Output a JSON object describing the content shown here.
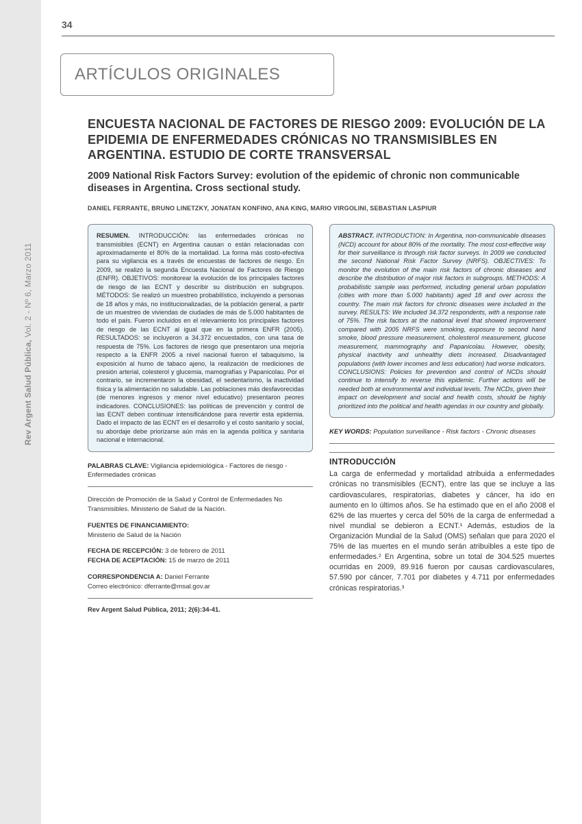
{
  "page_number": "34",
  "side_citation_bold": "Rev Argent Salud Pública,",
  "side_citation_rest": " Vol. 2 - Nº 6, Marzo 2011",
  "section_label": "ARTÍCULOS ORIGINALES",
  "title_es": "ENCUESTA NACIONAL DE FACTORES DE RIESGO 2009: EVOLUCIÓN DE LA EPIDEMIA DE ENFERMEDADES CRÓNICAS NO TRANSMISIBLES EN ARGENTINA. ESTUDIO DE CORTE TRANSVERSAL",
  "title_en": "2009 National Risk Factors Survey: evolution of the epidemic of chronic non communicable diseases in Argentina. Cross sectional study.",
  "authors": "Daniel Ferrante, Bruno Linetzky, Jonatan Konfino, Ana King, Mario Virgolini, Sebastian Laspiur",
  "resumen_lead": "RESUMEN.",
  "resumen_body": " INTRODUCCIÓN: las enfermedades crónicas no transmisibles (ECNT) en Argentina causan o están relacionadas con aproximadamente el 80% de la mortalidad. La forma más costo-efectiva para su vigilancia es a través de encuestas de factores de riesgo. En 2009, se realizó la segunda Encuesta Nacional de Factores de Riesgo (ENFR). OBJETIVOS: monitorear la evolución de los principales factores de riesgo de las ECNT y describir su distribución en subgrupos. MÉTODOS: Se realizó un muestreo probabilístico, incluyendo a personas de 18 años y más, no institucionalizadas, de la población general, a partir de un muestreo de viviendas de ciudades de más de 5.000 habitantes de todo el país. Fueron incluidos en el relevamiento los principales factores de riesgo de las ECNT al igual que en la primera ENFR (2005). RESULTADOS: se incluyeron a 34.372 encuestados, con una tasa de respuesta de 75%. Los factores de riesgo que presentaron una mejoría respecto a la ENFR 2005 a nivel nacional fueron el tabaquismo, la exposición al humo de tabaco ajeno, la realización de mediciones de presión arterial, colesterol y glucemia, mamografías y Papanicolau. Por el contrario, se incrementaron la obesidad, el sedentarismo, la inactividad física y la alimentación no saludable. Las poblaciones más desfavorecidas (de menores ingresos y menor nivel educativo) presentaron peores indicadores. CONCLUSIONES: las políticas de prevención y control de las ECNT deben continuar intensificándose para revertir esta epidemia. Dado el impacto de las ECNT en el desarrollo y el costo sanitario y social, su abordaje debe priorizarse aún más en la agenda política y sanitaria nacional e internacional.",
  "abstract_lead": "ABSTRACT.",
  "abstract_body": " INTRODUCTION: In Argentina, non-communicable diseases (NCD) account for about 80% of the mortality. The most cost-effective way for their surveillance is through risk factor surveys. In 2009 we conducted the second National Risk Factor Survey (NRFS). OBJECTIVES: To monitor the evolution of the main risk factors of chronic diseases and describe the distribution of major risk factors in subgroups. METHODS: A probabilistic sample was performed, including general urban population (cities with more than 5.000 habitants) aged 18 and over across the country. The main risk factors for chronic diseases were included in the survey. RESULTS: We included 34.372 respondents, with a response rate of 75%. The risk factors at the national level that showed improvement compared with 2005 NRFS were smoking, exposure to second hand smoke, blood pressure measurement, cholesterol measurement, glucose measurement, mammography and Papanicolau. However, obesity, physical inactivity and unhealthy diets increased. Disadvantaged populations (with lower incomes and less education) had worse indicators. CONCLUSIONS: Policies for prevention and control of NCDs should continue to intensify to reverse this epidemic. Further actions will be needed both at environmental and individual levels. The NCDs, given their impact on development and social and health costs, should be highly prioritized into the political and health agendas in our country and globally.",
  "palabras_lead": "PALABRAS CLAVE:",
  "palabras_body": " Vigilancia epidemiológica - Factores de riesgo - Enfermedades crónicas",
  "keywords_lead": "KEY WORDS:",
  "keywords_body": " Population surveillance - Risk factors - Chronic diseases",
  "affiliation": "Dirección de Promoción de la Salud y Control de Enfermedades No Transmisibles. Ministerio de Salud de la Nación.",
  "funding_label": "FUENTES DE FINANCIAMIENTO:",
  "funding_value": "Ministerio de Salud de la Nación",
  "recepcion_label": "FECHA DE RECEPCIÓN:",
  "recepcion_value": " 3 de febrero de 2011",
  "aceptacion_label": "FECHA DE ACEPTACIÓN:",
  "aceptacion_value": " 15 de marzo de 2011",
  "corr_label": "CORRESPONDENCIA A:",
  "corr_name": " Daniel Ferrante",
  "corr_email_label": "Correo electrónico: ",
  "corr_email": "dferrante@msal.gov.ar",
  "citation": "Rev Argent Salud Pública, 2011; 2(6):34-41.",
  "intro_heading": "INTRODUCCIÓN",
  "intro_body": "La carga de enfermedad y mortalidad atribuida a enfermedades crónicas no transmisibles (ECNT), entre las que se incluye a las cardiovasculares, respiratorias, diabetes y cáncer, ha ido en aumento en lo últimos años. Se ha estimado que en el año 2008 el 62% de las muertes y cerca del 50% de la carga de enfermedad a nivel mundial se debieron a ECNT.¹ Además, estudios de la Organización Mundial de la Salud (OMS) señalan que para 2020 el 75% de las muertes en el mundo serán atribuibles a este tipo de enfermedades.² En Argentina, sobre un total de 304.525 muertes ocurridas en 2009, 89.916 fueron por causas cardiovasculares, 57.590 por cáncer, 7.701 por diabetes y 4.711 por enfermedades crónicas respiratorias.³"
}
